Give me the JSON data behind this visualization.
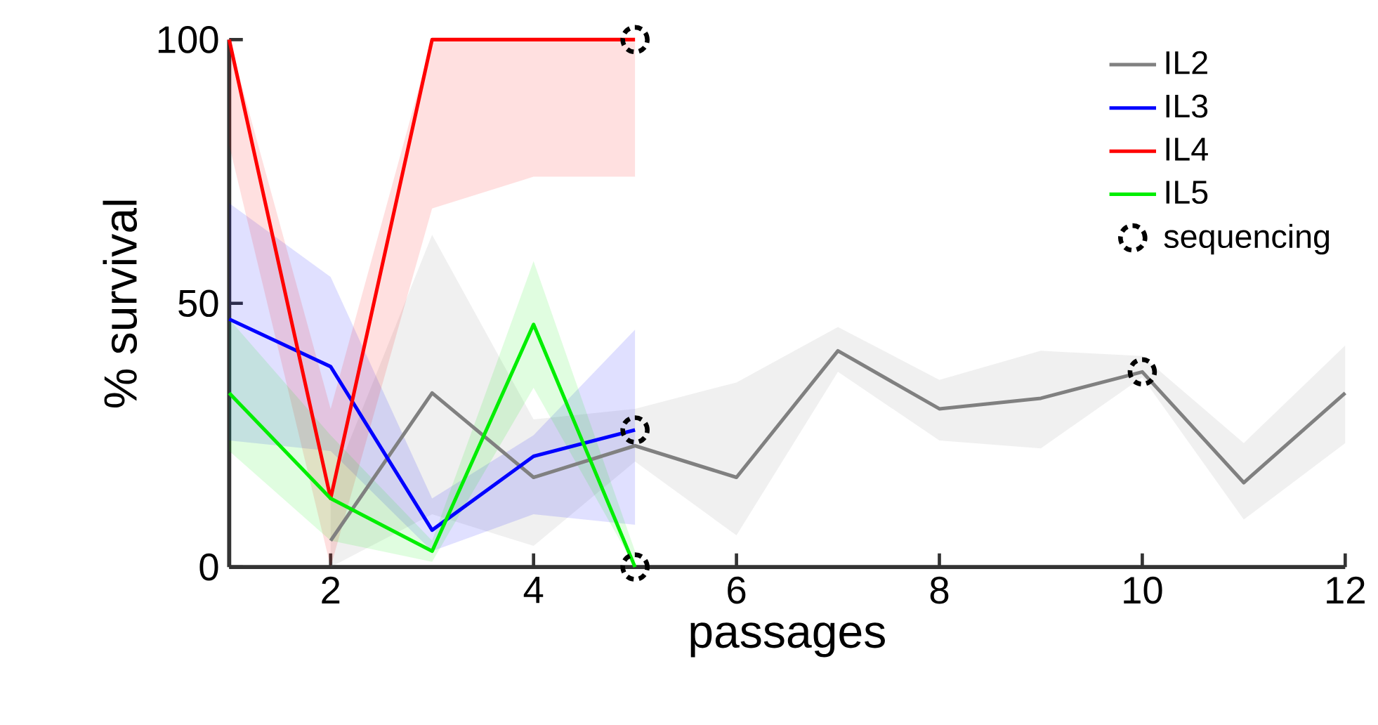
{
  "chart_data": {
    "type": "line",
    "xlabel": "passages",
    "ylabel": "% survival",
    "xlim": [
      1,
      12
    ],
    "ylim": [
      0,
      100
    ],
    "xticks": [
      2,
      4,
      6,
      8,
      10,
      12
    ],
    "yticks": [
      0,
      50,
      100
    ],
    "legend": "top right",
    "series": [
      {
        "name": "IL2",
        "color": "#808080",
        "x": [
          2,
          3,
          4,
          5,
          6,
          7,
          8,
          9,
          10,
          11,
          12
        ],
        "values": [
          5,
          33,
          17,
          23,
          17,
          41,
          30,
          32,
          37,
          16,
          33
        ],
        "lower": [
          0,
          10,
          4,
          20,
          6,
          37,
          24,
          22.5,
          36,
          9,
          23.5
        ],
        "upper": [
          15,
          63,
          28,
          30,
          35,
          45.5,
          35.5,
          41,
          40,
          23.5,
          42
        ]
      },
      {
        "name": "IL3",
        "color": "#0000ff",
        "x": [
          1,
          2,
          3,
          4,
          5
        ],
        "values": [
          47,
          38,
          7,
          21,
          26
        ],
        "lower": [
          24,
          22,
          3,
          10,
          8
        ],
        "upper": [
          69,
          55,
          13,
          25,
          45
        ]
      },
      {
        "name": "IL4",
        "color": "#ff0000",
        "x": [
          1,
          2,
          3,
          4,
          5
        ],
        "values": [
          100,
          13,
          100,
          100,
          100
        ],
        "lower": [
          80,
          0,
          68,
          74,
          74
        ],
        "upper": [
          100,
          30,
          100,
          100,
          100
        ]
      },
      {
        "name": "IL5",
        "color": "#00ee00",
        "x": [
          1,
          2,
          3,
          4,
          5
        ],
        "values": [
          33,
          13,
          3,
          46,
          0
        ],
        "lower": [
          22,
          5,
          1,
          34,
          0
        ],
        "upper": [
          47,
          25,
          5,
          58,
          3
        ]
      },
      {
        "name": "sequencing",
        "type": "scatter",
        "marker": "circle",
        "color": "#000000",
        "x": [
          5,
          5,
          5,
          10
        ],
        "values": [
          100,
          26,
          0,
          37
        ]
      }
    ]
  }
}
